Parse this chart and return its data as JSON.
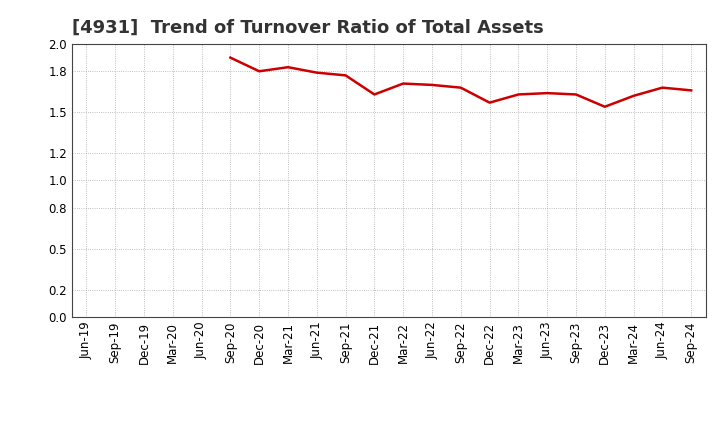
{
  "title": "[4931]  Trend of Turnover Ratio of Total Assets",
  "x_labels": [
    "Jun-19",
    "Sep-19",
    "Dec-19",
    "Mar-20",
    "Jun-20",
    "Sep-20",
    "Dec-20",
    "Mar-21",
    "Jun-21",
    "Sep-21",
    "Dec-21",
    "Mar-22",
    "Jun-22",
    "Sep-22",
    "Dec-22",
    "Mar-23",
    "Jun-23",
    "Sep-23",
    "Dec-23",
    "Mar-24",
    "Jun-24",
    "Sep-24"
  ],
  "values": [
    null,
    null,
    null,
    null,
    null,
    1.9,
    1.8,
    1.83,
    1.79,
    1.77,
    1.63,
    1.71,
    1.7,
    1.68,
    1.57,
    1.63,
    1.64,
    1.63,
    1.54,
    1.62,
    1.68,
    1.66
  ],
  "line_color": "#cc0000",
  "line_width": 1.8,
  "ylim": [
    0.0,
    2.0
  ],
  "ytick_vals": [
    0.0,
    0.2,
    0.5,
    0.8,
    1.0,
    1.2,
    1.5,
    1.8,
    2.0
  ],
  "background_color": "#ffffff",
  "grid_color": "#aaaaaa",
  "title_fontsize": 13,
  "tick_fontsize": 8.5
}
